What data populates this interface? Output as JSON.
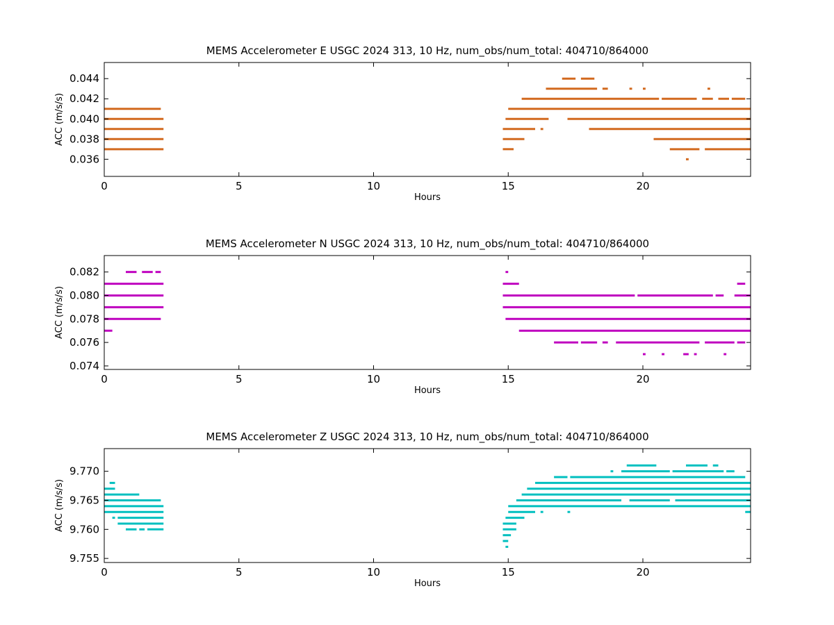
{
  "chart_data": [
    {
      "type": "scatter",
      "title": "MEMS Accelerometer E USGC 2024 313, 10 Hz, num_obs/num_total: 404710/864000",
      "xlabel": "Hours",
      "ylabel": "ACC (m/s/s)",
      "xlim": [
        0,
        24
      ],
      "ylim": [
        0.0343,
        0.0456
      ],
      "xticks": [
        0,
        5,
        10,
        15,
        20
      ],
      "yticks": [
        0.036,
        0.038,
        0.04,
        0.042,
        0.044
      ],
      "ytick_labels": [
        "0.036",
        "0.038",
        "0.040",
        "0.042",
        "0.044"
      ],
      "grid": false,
      "color": "#d2691e",
      "levels": [
        {
          "y": 0.044,
          "segments": [
            [
              17.0,
              17.5
            ],
            [
              17.7,
              18.2
            ]
          ]
        },
        {
          "y": 0.043,
          "segments": [
            [
              16.4,
              18.3
            ],
            [
              18.5,
              18.7
            ],
            [
              19.5,
              19.6
            ],
            [
              20.0,
              20.1
            ],
            [
              22.4,
              22.5
            ]
          ]
        },
        {
          "y": 0.042,
          "segments": [
            [
              15.5,
              20.6
            ],
            [
              20.7,
              22.0
            ],
            [
              22.2,
              22.6
            ],
            [
              22.8,
              23.2
            ],
            [
              23.3,
              23.8
            ]
          ]
        },
        {
          "y": 0.041,
          "segments": [
            [
              0.0,
              2.1
            ],
            [
              15.0,
              24.0
            ]
          ]
        },
        {
          "y": 0.04,
          "segments": [
            [
              0.0,
              2.2
            ],
            [
              14.9,
              16.5
            ],
            [
              17.2,
              24.0
            ]
          ]
        },
        {
          "y": 0.039,
          "segments": [
            [
              0.0,
              2.2
            ],
            [
              14.8,
              16.0
            ],
            [
              16.2,
              16.3
            ],
            [
              18.0,
              24.0
            ]
          ]
        },
        {
          "y": 0.038,
          "segments": [
            [
              0.0,
              2.2
            ],
            [
              14.8,
              15.6
            ],
            [
              20.4,
              24.0
            ]
          ]
        },
        {
          "y": 0.037,
          "segments": [
            [
              0.0,
              2.2
            ],
            [
              14.8,
              15.2
            ],
            [
              21.0,
              22.1
            ],
            [
              22.3,
              24.0
            ]
          ]
        },
        {
          "y": 0.036,
          "segments": [
            [
              21.6,
              21.7
            ]
          ]
        }
      ]
    },
    {
      "type": "scatter",
      "title": "MEMS Accelerometer N USGC 2024 313, 10 Hz, num_obs/num_total: 404710/864000",
      "xlabel": "Hours",
      "ylabel": "ACC (m/s/s)",
      "xlim": [
        0,
        24
      ],
      "ylim": [
        0.0737,
        0.0834
      ],
      "xticks": [
        0,
        5,
        10,
        15,
        20
      ],
      "yticks": [
        0.074,
        0.076,
        0.078,
        0.08,
        0.082
      ],
      "ytick_labels": [
        "0.074",
        "0.076",
        "0.078",
        "0.080",
        "0.082"
      ],
      "grid": false,
      "color": "#bf00bf",
      "levels": [
        {
          "y": 0.082,
          "segments": [
            [
              0.8,
              1.2
            ],
            [
              1.4,
              1.8
            ],
            [
              1.9,
              2.1
            ],
            [
              14.9,
              15.0
            ]
          ]
        },
        {
          "y": 0.081,
          "segments": [
            [
              0.0,
              2.2
            ],
            [
              14.8,
              15.4
            ],
            [
              23.5,
              23.8
            ]
          ]
        },
        {
          "y": 0.08,
          "segments": [
            [
              0.0,
              2.2
            ],
            [
              14.8,
              19.7
            ],
            [
              19.8,
              22.6
            ],
            [
              22.7,
              23.0
            ],
            [
              23.4,
              24.0
            ]
          ]
        },
        {
          "y": 0.079,
          "segments": [
            [
              0.0,
              2.2
            ],
            [
              14.8,
              24.0
            ]
          ]
        },
        {
          "y": 0.078,
          "segments": [
            [
              0.0,
              2.1
            ],
            [
              14.9,
              24.0
            ]
          ]
        },
        {
          "y": 0.077,
          "segments": [
            [
              0.0,
              0.3
            ],
            [
              15.4,
              24.0
            ]
          ]
        },
        {
          "y": 0.076,
          "segments": [
            [
              16.7,
              17.6
            ],
            [
              17.7,
              18.3
            ],
            [
              18.5,
              18.7
            ],
            [
              19.0,
              22.1
            ],
            [
              22.3,
              23.4
            ],
            [
              23.5,
              23.8
            ]
          ]
        },
        {
          "y": 0.075,
          "segments": [
            [
              20.0,
              20.1
            ],
            [
              20.7,
              20.8
            ],
            [
              21.5,
              21.7
            ],
            [
              21.9,
              22.0
            ],
            [
              23.0,
              23.1
            ]
          ]
        }
      ]
    },
    {
      "type": "scatter",
      "title": "MEMS Accelerometer Z USGC 2024 313, 10 Hz, num_obs/num_total: 404710/864000",
      "xlabel": "Hours",
      "ylabel": "ACC (m/s/s)",
      "xlim": [
        0,
        24
      ],
      "ylim": [
        9.7543,
        9.7739
      ],
      "xticks": [
        0,
        5,
        10,
        15,
        20
      ],
      "yticks": [
        9.755,
        9.76,
        9.765,
        9.77
      ],
      "ytick_labels": [
        "9.755",
        "9.760",
        "9.765",
        "9.770"
      ],
      "grid": false,
      "color": "#00bfbf",
      "levels": [
        {
          "y": 9.771,
          "segments": [
            [
              19.4,
              20.5
            ],
            [
              21.6,
              22.4
            ],
            [
              22.6,
              22.8
            ]
          ]
        },
        {
          "y": 9.77,
          "segments": [
            [
              18.8,
              18.9
            ],
            [
              19.2,
              21.0
            ],
            [
              21.1,
              23.0
            ],
            [
              23.1,
              23.4
            ]
          ]
        },
        {
          "y": 9.769,
          "segments": [
            [
              16.7,
              17.2
            ],
            [
              17.3,
              23.8
            ]
          ]
        },
        {
          "y": 9.768,
          "segments": [
            [
              0.2,
              0.4
            ],
            [
              16.0,
              24.0
            ]
          ]
        },
        {
          "y": 9.767,
          "segments": [
            [
              0.0,
              0.4
            ],
            [
              15.7,
              24.0
            ]
          ]
        },
        {
          "y": 9.766,
          "segments": [
            [
              0.0,
              1.2
            ],
            [
              1.2,
              1.3
            ],
            [
              15.5,
              24.0
            ]
          ]
        },
        {
          "y": 9.765,
          "segments": [
            [
              0.0,
              2.0
            ],
            [
              2.0,
              2.1
            ],
            [
              15.3,
              19.2
            ],
            [
              19.5,
              21.0
            ],
            [
              21.2,
              24.0
            ]
          ]
        },
        {
          "y": 9.764,
          "segments": [
            [
              0.0,
              2.2
            ],
            [
              15.0,
              24.0
            ]
          ]
        },
        {
          "y": 9.763,
          "segments": [
            [
              0.0,
              2.2
            ],
            [
              15.0,
              16.0
            ],
            [
              16.2,
              16.3
            ],
            [
              17.2,
              17.3
            ],
            [
              23.8,
              24.0
            ]
          ]
        },
        {
          "y": 9.762,
          "segments": [
            [
              0.3,
              0.4
            ],
            [
              0.5,
              2.2
            ],
            [
              14.9,
              15.6
            ]
          ]
        },
        {
          "y": 9.761,
          "segments": [
            [
              0.5,
              2.2
            ],
            [
              14.8,
              15.3
            ]
          ]
        },
        {
          "y": 9.76,
          "segments": [
            [
              0.8,
              1.2
            ],
            [
              1.3,
              1.5
            ],
            [
              1.6,
              2.2
            ],
            [
              14.8,
              15.3
            ]
          ]
        },
        {
          "y": 9.759,
          "segments": [
            [
              14.8,
              15.1
            ]
          ]
        },
        {
          "y": 9.758,
          "segments": [
            [
              14.8,
              15.0
            ]
          ]
        },
        {
          "y": 9.757,
          "segments": [
            [
              14.9,
              15.0
            ]
          ]
        }
      ]
    }
  ]
}
